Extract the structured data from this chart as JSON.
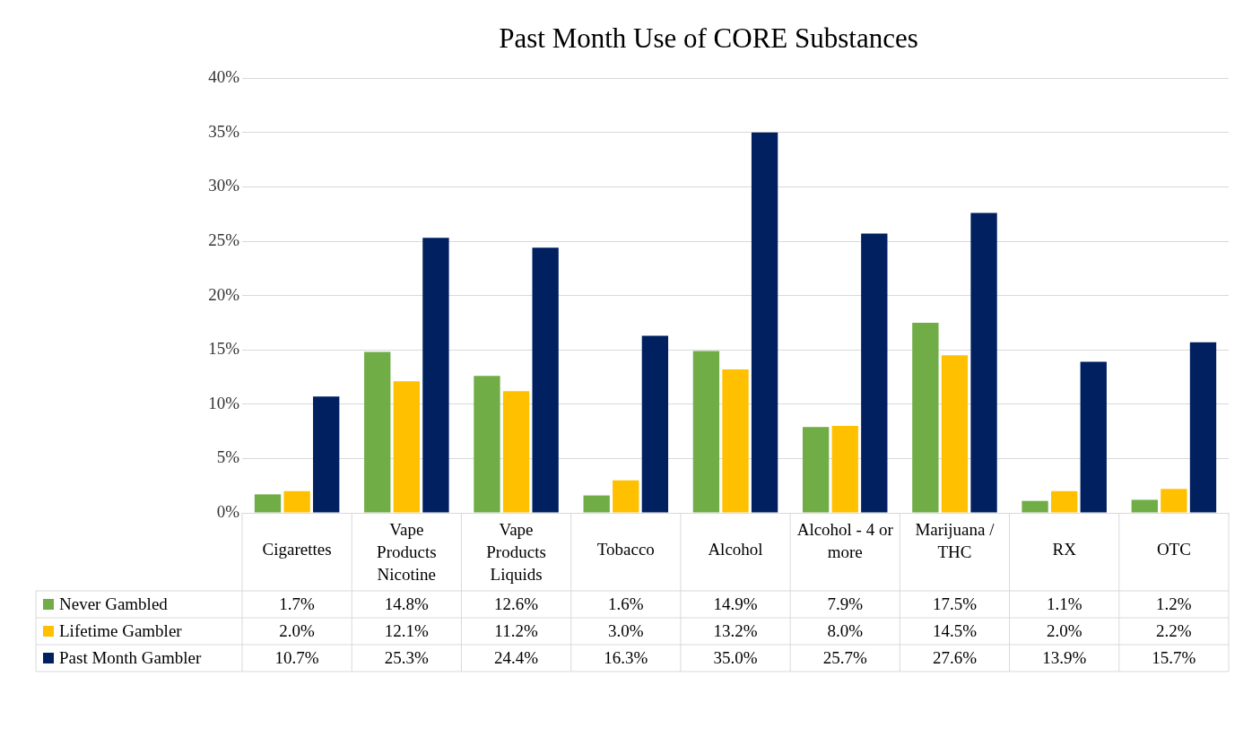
{
  "chart_data": {
    "type": "bar",
    "title": "Past Month Use of CORE Substances",
    "categories": [
      "Cigarettes",
      "Vape Products Nicotine",
      "Vape Products Liquids",
      "Tobacco",
      "Alcohol",
      "Alcohol - 4 or more",
      "Marijuana / THC",
      "RX",
      "OTC"
    ],
    "series": [
      {
        "name": "Never Gambled",
        "color": "#70ad47",
        "values": [
          1.7,
          14.8,
          12.6,
          1.6,
          14.9,
          7.9,
          17.5,
          1.1,
          1.2
        ],
        "value_labels": [
          "1.7%",
          "14.8%",
          "12.6%",
          "1.6%",
          "14.9%",
          "7.9%",
          "17.5%",
          "1.1%",
          "1.2%"
        ]
      },
      {
        "name": "Lifetime Gambler",
        "color": "#ffc000",
        "values": [
          2.0,
          12.1,
          11.2,
          3.0,
          13.2,
          8.0,
          14.5,
          2.0,
          2.2
        ],
        "value_labels": [
          "2.0%",
          "12.1%",
          "11.2%",
          "3.0%",
          "13.2%",
          "8.0%",
          "14.5%",
          "2.0%",
          "2.2%"
        ]
      },
      {
        "name": "Past Month Gambler",
        "color": "#002060",
        "values": [
          10.7,
          25.3,
          24.4,
          16.3,
          35.0,
          25.7,
          27.6,
          13.9,
          15.7
        ],
        "value_labels": [
          "10.7%",
          "25.3%",
          "24.4%",
          "16.3%",
          "35.0%",
          "25.7%",
          "27.6%",
          "13.9%",
          "15.7%"
        ]
      }
    ],
    "ylim": [
      0,
      40
    ],
    "yticks": [
      {
        "value": 0,
        "label": "0%"
      },
      {
        "value": 5,
        "label": "5%"
      },
      {
        "value": 10,
        "label": "10%"
      },
      {
        "value": 15,
        "label": "15%"
      },
      {
        "value": 20,
        "label": "20%"
      },
      {
        "value": 25,
        "label": "25%"
      },
      {
        "value": 30,
        "label": "30%"
      },
      {
        "value": 35,
        "label": "35%"
      },
      {
        "value": 40,
        "label": "40%"
      }
    ],
    "grid": "y",
    "legend": "bottom"
  }
}
